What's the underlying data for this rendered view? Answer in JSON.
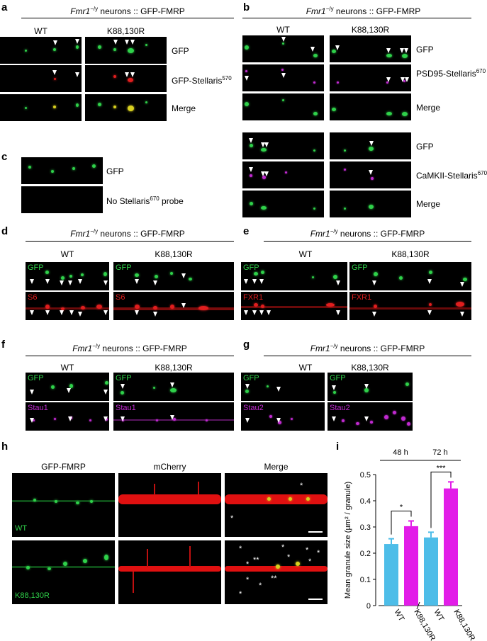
{
  "panels": {
    "a": {
      "label": "a",
      "title_gene": "Fmr1",
      "title_sup": "−/y",
      "title_rest": " neurons :: GFP-FMRP",
      "cols": [
        "WT",
        "K88,130R"
      ],
      "rows": [
        "GFP",
        "GFP-Stellaris",
        "Merge"
      ],
      "row2_sup": "570"
    },
    "b": {
      "label": "b",
      "title_gene": "Fmr1",
      "title_sup": "−/y",
      "title_rest": " neurons :: GFP-FMRP",
      "cols": [
        "WT",
        "K88,130R"
      ],
      "rows_top": [
        "GFP",
        "PSD95-Stellaris",
        "Merge"
      ],
      "rows_top_sup": "670",
      "rows_bottom": [
        "GFP",
        "CaMKII-Stellaris",
        "Merge"
      ],
      "rows_bottom_sup": "670"
    },
    "c": {
      "label": "c",
      "rows": [
        "GFP",
        "No Stellaris"
      ],
      "row2_sup": "670",
      "row2_suffix": " probe"
    },
    "d": {
      "label": "d",
      "title_gene": "Fmr1",
      "title_sup": "−/y",
      "title_rest": " neurons :: GFP-FMRP",
      "cols": [
        "WT",
        "K88,130R"
      ],
      "inlabels": [
        "GFP",
        "S6"
      ]
    },
    "e": {
      "label": "e",
      "title_gene": "Fmr1",
      "title_sup": "−/y",
      "title_rest": " neurons :: GFP-FMRP",
      "cols": [
        "WT",
        "K88,130R"
      ],
      "inlabels": [
        "GFP",
        "FXR1"
      ]
    },
    "f": {
      "label": "f",
      "title_gene": "Fmr1",
      "title_sup": "−/y",
      "title_rest": " neurons :: GFP-FMRP",
      "cols": [
        "WT",
        "K88,130R"
      ],
      "inlabels": [
        "GFP",
        "Stau1"
      ]
    },
    "g": {
      "label": "g",
      "title_gene": "Fmr1",
      "title_sup": "−/y",
      "title_rest": " neurons :: GFP-FMRP",
      "cols": [
        "WT",
        "K88,130R"
      ],
      "inlabels": [
        "GFP",
        "Stau2"
      ]
    },
    "h": {
      "label": "h",
      "cols": [
        "GFP-FMRP",
        "mCherry",
        "Merge"
      ],
      "rows": [
        "WT",
        "K88,130R"
      ]
    },
    "i": {
      "label": "i"
    }
  },
  "chart_data": {
    "type": "bar",
    "title": "",
    "ylabel": "Mean granule size (µm² / granule)",
    "ylim": [
      0,
      0.5
    ],
    "yticks": [
      "0",
      "0.1",
      "0.2",
      "0.3",
      "0.4",
      "0.5"
    ],
    "groups": [
      {
        "name": "48 h",
        "categories": [
          "WT",
          "K88,130R"
        ],
        "values": [
          0.235,
          0.303
        ],
        "errors": [
          0.02,
          0.02
        ],
        "significance": "*"
      },
      {
        "name": "72 h",
        "categories": [
          "WT",
          "K88,130R"
        ],
        "values": [
          0.26,
          0.447
        ],
        "errors": [
          0.02,
          0.025
        ],
        "significance": "***"
      }
    ],
    "colors": [
      "#4dbde8",
      "#e21de8"
    ],
    "grid": false
  }
}
